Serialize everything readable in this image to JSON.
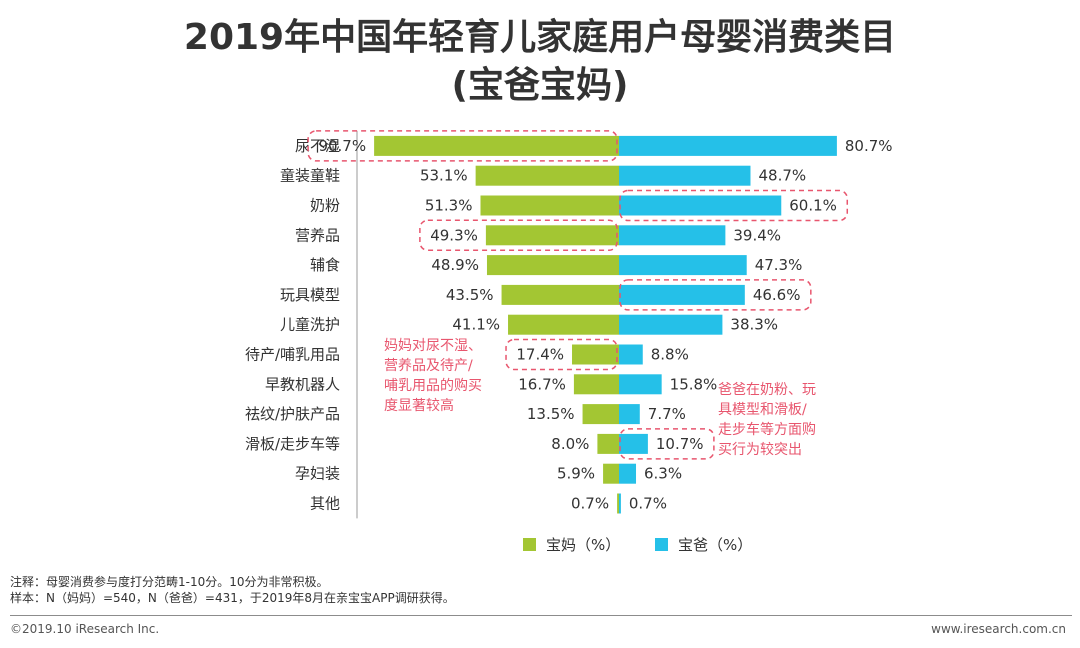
{
  "title": {
    "line1": "2019年中国年轻育儿家庭用户母婴消费类目",
    "line2": "(宝爸宝妈)"
  },
  "chart_data": {
    "type": "bar",
    "orientation": "diverging-horizontal",
    "categories": [
      "尿不湿",
      "童装童鞋",
      "奶粉",
      "营养品",
      "辅食",
      "玩具模型",
      "儿童洗护",
      "待产/哺乳用品",
      "早教机器人",
      "祛纹/护肤产品",
      "滑板/走步车等",
      "孕妇装",
      "其他"
    ],
    "series": [
      {
        "name": "宝妈（%）",
        "color": "#a3c633",
        "values": [
          90.7,
          53.1,
          51.3,
          49.3,
          48.9,
          43.5,
          41.1,
          17.4,
          16.7,
          13.5,
          8.0,
          5.9,
          0.7
        ],
        "labels": [
          "90.7%",
          "53.1%",
          "51.3%",
          "49.3%",
          "48.9%",
          "43.5%",
          "41.1%",
          "17.4%",
          "16.7%",
          "13.5%",
          "8.0%",
          "5.9%",
          "0.7%"
        ]
      },
      {
        "name": "宝爸（%）",
        "color": "#25c0e8",
        "values": [
          80.7,
          48.7,
          60.1,
          39.4,
          47.3,
          46.6,
          38.3,
          8.8,
          15.8,
          7.7,
          10.7,
          6.3,
          0.7
        ],
        "labels": [
          "80.7%",
          "48.7%",
          "60.1%",
          "39.4%",
          "47.3%",
          "46.6%",
          "38.3%",
          "8.8%",
          "15.8%",
          "7.7%",
          "10.7%",
          "6.3%",
          "0.7%"
        ]
      }
    ],
    "highlighted": {
      "mom": [
        "尿不湿",
        "营养品",
        "待产/哺乳用品"
      ],
      "dad": [
        "奶粉",
        "玩具模型",
        "滑板/走步车等"
      ]
    },
    "legend_position": "bottom-center"
  },
  "callouts": {
    "mom": "妈妈对尿不湿、\n营养品及待产/\n哺乳用品的购买\n度显著较高",
    "dad": "爸爸在奶粉、玩\n具模型和滑板/\n走步车等方面购\n买行为较突出"
  },
  "notes": {
    "note1": "注释：母婴消费参与度打分范畴1-10分。10分为非常积极。",
    "note2": "样本：N（妈妈）=540，N（爸爸）=431，于2019年8月在亲宝宝APP调研获得。"
  },
  "footer": {
    "copyright": "©2019.10 iResearch Inc.",
    "website": "www.iresearch.com.cn"
  },
  "colors": {
    "mom": "#a3c633",
    "dad": "#25c0e8",
    "highlight": "#e8566e"
  }
}
